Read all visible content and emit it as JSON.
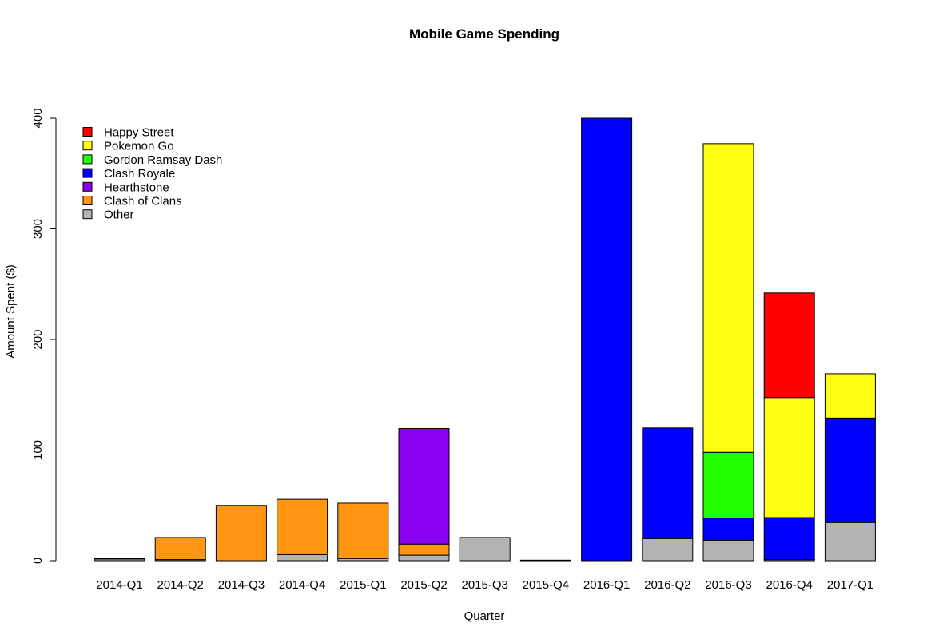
{
  "chart_data": {
    "type": "bar",
    "stacked": true,
    "title": "Mobile Game Spending",
    "xlabel": "Quarter",
    "ylabel": "Amount Spent ($)",
    "ylim": [
      0,
      400
    ],
    "yticks": [
      0,
      100,
      200,
      300,
      400
    ],
    "grid": false,
    "legend_position": "top-left",
    "categories": [
      "2014-Q1",
      "2014-Q2",
      "2014-Q3",
      "2014-Q4",
      "2015-Q1",
      "2015-Q2",
      "2015-Q3",
      "2015-Q4",
      "2016-Q1",
      "2016-Q2",
      "2016-Q3",
      "2016-Q4",
      "2017-Q1"
    ],
    "series": [
      {
        "name": "Other",
        "color": "#b3b3b3",
        "values": [
          1.5,
          1,
          0,
          5.5,
          2,
          5,
          21,
          0.5,
          0,
          20,
          18.5,
          1,
          34.5
        ]
      },
      {
        "name": "Clash of Clans",
        "color": "#ff9510",
        "values": [
          0.5,
          20,
          50,
          50,
          50,
          10,
          0,
          0,
          0,
          0,
          0,
          0,
          0
        ]
      },
      {
        "name": "Hearthstone",
        "color": "#8b00ee",
        "values": [
          0,
          0,
          0,
          0,
          0,
          104.5,
          0,
          0,
          0,
          0,
          0,
          0,
          0
        ]
      },
      {
        "name": "Clash Royale",
        "color": "#0000ff",
        "values": [
          0,
          0,
          0,
          0,
          0,
          0,
          0,
          0,
          400,
          100,
          20,
          38,
          94.5
        ]
      },
      {
        "name": "Gordon Ramsay Dash",
        "color": "#22ff00",
        "values": [
          0,
          0,
          0,
          0,
          0,
          0,
          0,
          0,
          0,
          0,
          59.5,
          0,
          0
        ]
      },
      {
        "name": "Pokemon Go",
        "color": "#ffff11",
        "values": [
          0,
          0,
          0,
          0,
          0,
          0,
          0,
          0,
          0,
          0,
          279,
          108.5,
          40
        ]
      },
      {
        "name": "Happy Street",
        "color": "#ff0000",
        "values": [
          0,
          0,
          0,
          0,
          0,
          0,
          0,
          0,
          0,
          0,
          0,
          94.5,
          0
        ]
      }
    ],
    "legend_order": [
      "Happy Street",
      "Pokemon Go",
      "Gordon Ramsay Dash",
      "Clash Royale",
      "Hearthstone",
      "Clash of Clans",
      "Other"
    ]
  }
}
